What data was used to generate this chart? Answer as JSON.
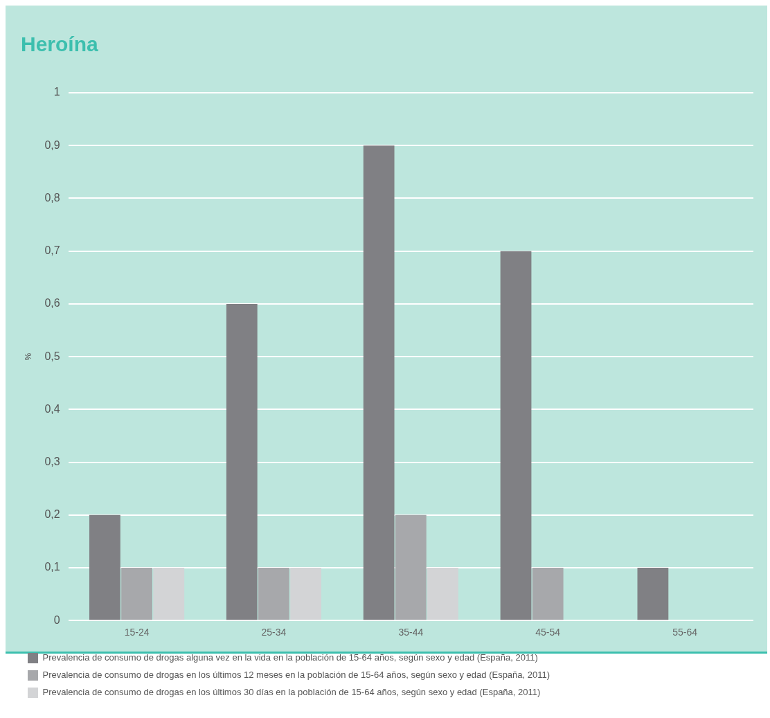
{
  "chart_data": {
    "type": "bar",
    "title": "Heroína",
    "ylabel": "%",
    "categories": [
      "15-24",
      "25-34",
      "35-44",
      "45-54",
      "55-64"
    ],
    "series": [
      {
        "name": "Prevalencia de consumo de drogas alguna vez en la vida en la población de 15-64 años, según sexo y edad (España, 2011)",
        "color": "#808084",
        "values": [
          0.2,
          0.6,
          0.9,
          0.7,
          0.1
        ]
      },
      {
        "name": "Prevalencia de consumo de drogas en los últimos 12 meses en la población de 15-64 años, según sexo y edad (España, 2011)",
        "color": "#a7a8ab",
        "values": [
          0.1,
          0.1,
          0.2,
          0.1,
          null
        ]
      },
      {
        "name": "Prevalencia de consumo de drogas en los últimos 30 días en la población de 15-64 años, según sexo y edad (España, 2011)",
        "color": "#d3d4d6",
        "values": [
          0.1,
          0.1,
          0.1,
          null,
          null
        ]
      }
    ],
    "ylim": [
      0,
      1
    ],
    "yticks": [
      0,
      {
        "value": 0.1,
        "label": "0,1"
      },
      {
        "value": 0.2,
        "label": "0,2"
      },
      {
        "value": 0.3,
        "label": "0,3"
      },
      {
        "value": 0.4,
        "label": "0,4"
      },
      {
        "value": 0.5,
        "label": "0,5"
      },
      {
        "value": 0.6,
        "label": "0,6"
      },
      {
        "value": 0.7,
        "label": "0,7"
      },
      {
        "value": 0.8,
        "label": "0,8"
      },
      {
        "value": 0.9,
        "label": "0,9"
      },
      1
    ],
    "grid": "y",
    "legend": "bottom left"
  }
}
